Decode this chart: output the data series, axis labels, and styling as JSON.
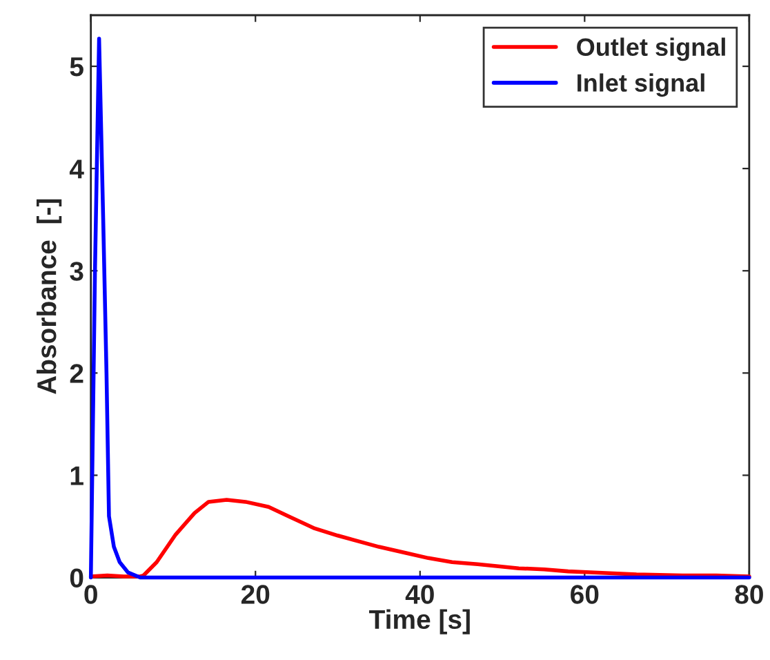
{
  "chart_data": {
    "type": "line",
    "xlabel": "Time [s]",
    "ylabel": "Absorbance  [-]",
    "xlim": [
      0,
      80
    ],
    "ylim": [
      0,
      5.5
    ],
    "xticks": [
      0,
      20,
      40,
      60,
      80
    ],
    "yticks": [
      0,
      1,
      2,
      3,
      4,
      5
    ],
    "grid": false,
    "legend": "top right",
    "marker": "none",
    "line_style": "solid",
    "series": [
      {
        "name": "Outlet signal",
        "color": "#ff0000",
        "x": [
          0,
          2,
          4,
          6,
          6.4,
          8,
          10.3,
          12.6,
          14.3,
          16.5,
          18.8,
          21.6,
          24,
          27.2,
          30,
          32.7,
          35,
          38.3,
          41,
          43.9,
          47,
          49.5,
          52,
          55.1,
          58,
          60.7,
          66.3,
          71.9,
          76,
          80
        ],
        "values": [
          0.01,
          0.02,
          0.01,
          0.01,
          0.02,
          0.15,
          0.42,
          0.63,
          0.74,
          0.76,
          0.74,
          0.69,
          0.6,
          0.48,
          0.41,
          0.35,
          0.3,
          0.24,
          0.19,
          0.15,
          0.13,
          0.11,
          0.09,
          0.08,
          0.06,
          0.05,
          0.03,
          0.02,
          0.02,
          0.01
        ]
      },
      {
        "name": "Inlet signal",
        "color": "#0000ff",
        "x": [
          0,
          0.5,
          1,
          1.5,
          1.9,
          2.2,
          2.8,
          3.5,
          4.5,
          6,
          20,
          40,
          60,
          80
        ],
        "values": [
          0,
          3.0,
          5.27,
          3.5,
          2.0,
          0.6,
          0.3,
          0.15,
          0.05,
          0,
          0,
          0,
          0,
          0
        ]
      }
    ]
  }
}
